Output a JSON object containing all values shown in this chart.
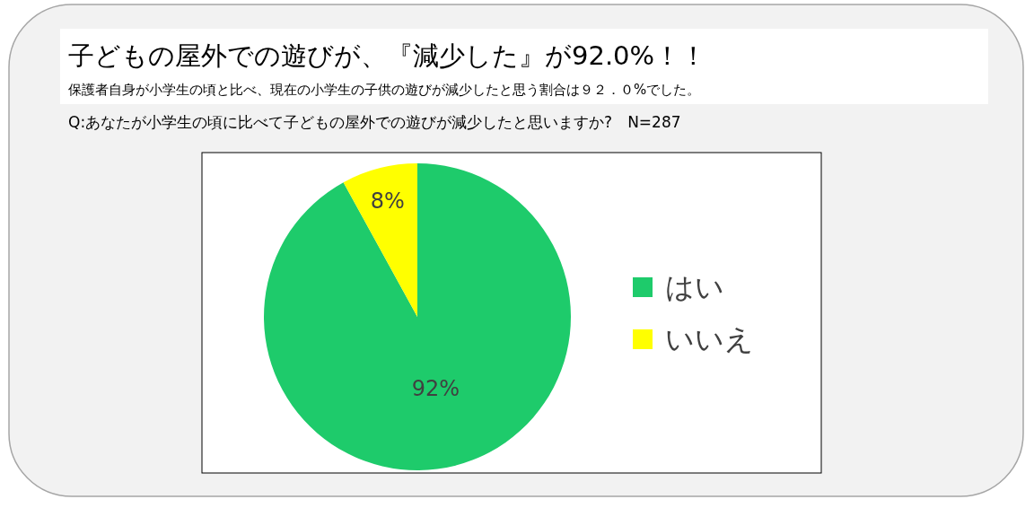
{
  "chart_data": {
    "type": "pie",
    "title": "子どもの屋外での遊びが、『減少した』が92.0%！！",
    "subtitle": "保護者自身が小学生の頃と比べ、現在の小学生の子供の遊びが減少したと思う割合は９２．０%でした。",
    "annotations": [
      "Q:あなたが小学生の頃に比べて子どもの屋外での遊びが減少したと思いますか?　N=287"
    ],
    "categories": [
      "はい",
      "いいえ"
    ],
    "values": [
      92,
      8
    ],
    "colors": [
      "#1ecb6b",
      "#ffff00"
    ],
    "value_labels": [
      "92%",
      "8%"
    ],
    "legend": "right"
  }
}
